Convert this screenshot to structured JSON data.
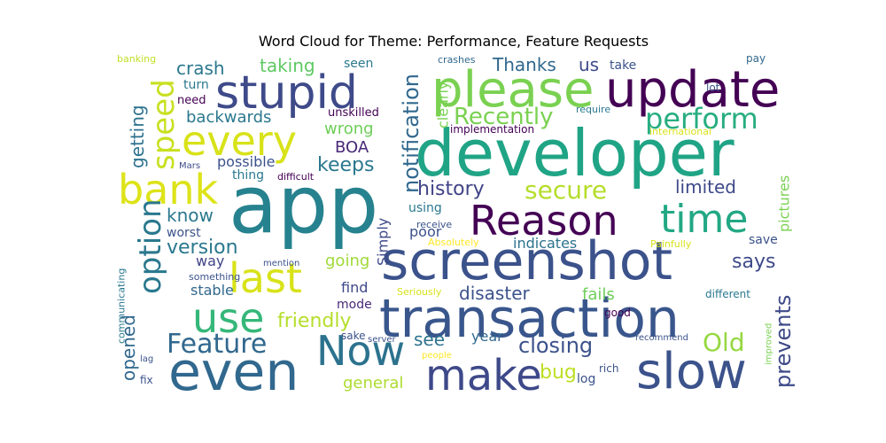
{
  "chart_data": {
    "type": "wordcloud",
    "title": "Word Cloud for Theme: Performance, Feature Requests",
    "words": [
      {
        "text": "app",
        "color": "#26828e"
      },
      {
        "text": "developer",
        "color": "#20a486"
      },
      {
        "text": "screenshot",
        "color": "#3b528b"
      },
      {
        "text": "transaction",
        "color": "#39568c"
      },
      {
        "text": "please",
        "color": "#7ad151"
      },
      {
        "text": "update",
        "color": "#440154"
      },
      {
        "text": "stupid",
        "color": "#3e4a89"
      },
      {
        "text": "Reason",
        "color": "#440154"
      },
      {
        "text": "time",
        "color": "#22a884"
      },
      {
        "text": "slow",
        "color": "#3b528b"
      },
      {
        "text": "even",
        "color": "#31688e"
      },
      {
        "text": "make",
        "color": "#3e4989"
      },
      {
        "text": "every",
        "color": "#d8e219"
      },
      {
        "text": "bank",
        "color": "#dde318"
      },
      {
        "text": "last",
        "color": "#d8e219"
      },
      {
        "text": "use",
        "color": "#35b779"
      },
      {
        "text": "Now",
        "color": "#2c728e"
      },
      {
        "text": "Feature",
        "color": "#31688e"
      },
      {
        "text": "perform",
        "color": "#27ad81"
      },
      {
        "text": "secure",
        "color": "#b5de2b"
      },
      {
        "text": "Recently",
        "color": "#7ad151"
      },
      {
        "text": "history",
        "color": "#414487"
      },
      {
        "text": "keeps",
        "color": "#2a788e"
      },
      {
        "text": "crash",
        "color": "#2a788e"
      },
      {
        "text": "taking",
        "color": "#5ec962"
      },
      {
        "text": "Thanks",
        "color": "#31688e"
      },
      {
        "text": "us",
        "color": "#3e4a89"
      },
      {
        "text": "take",
        "color": "#3b528b"
      },
      {
        "text": "seen",
        "color": "#2a788e"
      },
      {
        "text": "wrong",
        "color": "#6ece58"
      },
      {
        "text": "BOA",
        "color": "#482878"
      },
      {
        "text": "limited",
        "color": "#3e4989"
      },
      {
        "text": "know",
        "color": "#2a788e"
      },
      {
        "text": "version",
        "color": "#2a788e"
      },
      {
        "text": "worst",
        "color": "#3b528b"
      },
      {
        "text": "says",
        "color": "#3e4a89"
      },
      {
        "text": "save",
        "color": "#3b528b"
      },
      {
        "text": "closing",
        "color": "#3b528b"
      },
      {
        "text": "Old",
        "color": "#95d840"
      },
      {
        "text": "see",
        "color": "#2c728e"
      },
      {
        "text": "year",
        "color": "#31688e"
      },
      {
        "text": "bug",
        "color": "#bddf26"
      },
      {
        "text": "log",
        "color": "#3b528b"
      },
      {
        "text": "general",
        "color": "#addc30"
      },
      {
        "text": "going",
        "color": "#a0da39"
      },
      {
        "text": "stable",
        "color": "#31688e"
      },
      {
        "text": "way",
        "color": "#414487"
      },
      {
        "text": "find",
        "color": "#3e4989"
      },
      {
        "text": "mode",
        "color": "#482878"
      },
      {
        "text": "friendly",
        "color": "#b5de2b"
      },
      {
        "text": "disaster",
        "color": "#3b528b"
      },
      {
        "text": "fails",
        "color": "#6ece58"
      },
      {
        "text": "different",
        "color": "#2a788e"
      },
      {
        "text": "good",
        "color": "#440154"
      },
      {
        "text": "recommend",
        "color": "#3b528b"
      },
      {
        "text": "rich",
        "color": "#3b528b"
      },
      {
        "text": "sake",
        "color": "#3b528b"
      },
      {
        "text": "server",
        "color": "#3b528b"
      },
      {
        "text": "people",
        "color": "#fde725"
      },
      {
        "text": "possible",
        "color": "#3b528b"
      },
      {
        "text": "thing",
        "color": "#2a788e"
      },
      {
        "text": "difficult",
        "color": "#440154"
      },
      {
        "text": "Mars",
        "color": "#3e4a89"
      },
      {
        "text": "backwards",
        "color": "#2a788e"
      },
      {
        "text": "turn",
        "color": "#2a788e"
      },
      {
        "text": "need",
        "color": "#440154"
      },
      {
        "text": "unskilled",
        "color": "#440154"
      },
      {
        "text": "implementation",
        "color": "#440154"
      },
      {
        "text": "require",
        "color": "#2a788e"
      },
      {
        "text": "international",
        "color": "#d8e219"
      },
      {
        "text": "lot",
        "color": "#3b528b"
      },
      {
        "text": "pay",
        "color": "#31688e"
      },
      {
        "text": "crashes",
        "color": "#31688e"
      },
      {
        "text": "banking",
        "color": "#c2df23"
      },
      {
        "text": "indicates",
        "color": "#2c728e"
      },
      {
        "text": "Absolutely",
        "color": "#fde725"
      },
      {
        "text": "receive",
        "color": "#3b528b"
      },
      {
        "text": "using",
        "color": "#2a788e"
      },
      {
        "text": "poor",
        "color": "#3b528b"
      },
      {
        "text": "Painfully",
        "color": "#d8e219"
      },
      {
        "text": "Seriously",
        "color": "#d8e219"
      },
      {
        "text": "something",
        "color": "#3b528b"
      },
      {
        "text": "mention",
        "color": "#3b528b"
      },
      {
        "text": "lag",
        "color": "#3b528b"
      },
      {
        "text": "fix",
        "color": "#3b528b"
      },
      {
        "text": "speed",
        "color": "#c8e020"
      },
      {
        "text": "option",
        "color": "#2a788e"
      },
      {
        "text": "getting",
        "color": "#2c728e"
      },
      {
        "text": "opened",
        "color": "#31688e"
      },
      {
        "text": "notification",
        "color": "#31688e"
      },
      {
        "text": "clearly",
        "color": "#7ad151"
      },
      {
        "text": "Simply",
        "color": "#3e4989"
      },
      {
        "text": "prevents",
        "color": "#3e4a89"
      },
      {
        "text": "pictures",
        "color": "#7ad151"
      },
      {
        "text": "communicating",
        "color": "#2a788e"
      },
      {
        "text": "improved",
        "color": "#7ad151"
      }
    ]
  }
}
